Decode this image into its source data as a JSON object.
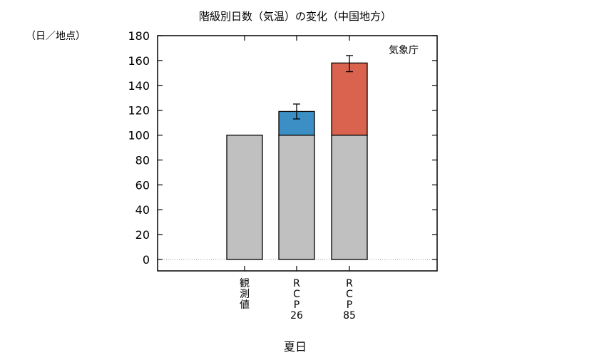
{
  "chart_data": {
    "type": "bar",
    "stacked": true,
    "title": "階級別日数（気温）の変化（中国地方）",
    "ylabel": "（日／地点）",
    "xlabel": "夏日",
    "source_label": "気象庁",
    "ylim": [
      0,
      180
    ],
    "yticks": [
      0,
      20,
      40,
      60,
      80,
      100,
      120,
      140,
      160,
      180
    ],
    "categories": [
      [
        "観",
        "測",
        "値"
      ],
      [
        "R",
        "C",
        "P",
        "26"
      ],
      [
        "R",
        "C",
        "P",
        "85"
      ]
    ],
    "series": [
      {
        "values": [
          100,
          100,
          100
        ],
        "color": "#c0c0c0"
      },
      {
        "values": [
          0,
          19,
          58
        ],
        "colors": [
          "#c0c0c0",
          "#3c8fc4",
          "#d9634f"
        ]
      }
    ],
    "error_bars": [
      null,
      {
        "low": 113,
        "high": 125
      },
      {
        "low": 151,
        "high": 164
      }
    ],
    "grid": false,
    "zero_line": "dotted"
  }
}
